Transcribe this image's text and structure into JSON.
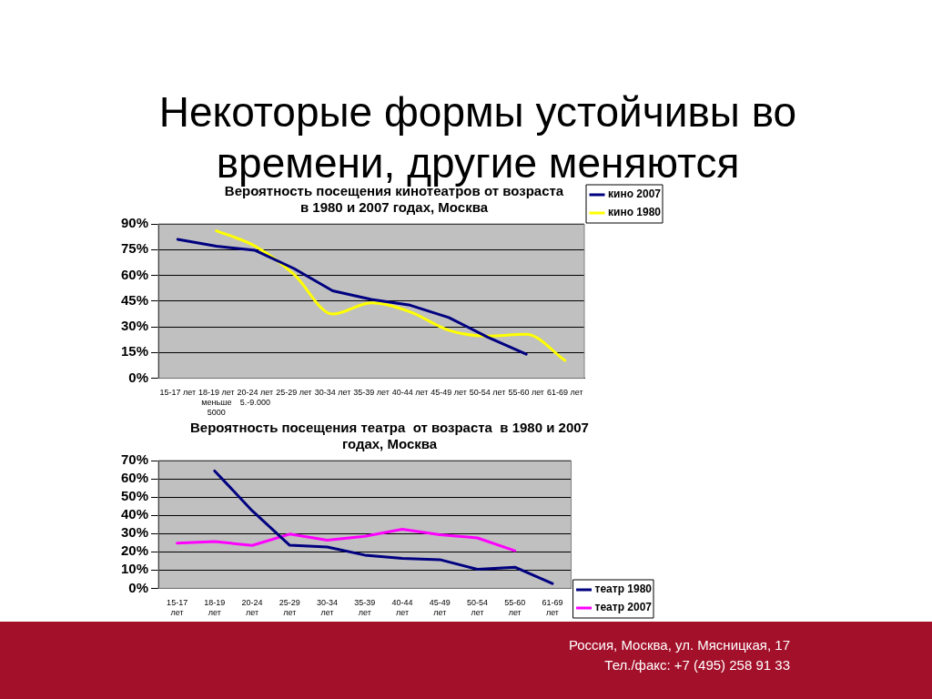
{
  "chart_data": [
    {
      "type": "line",
      "title": "Вероятность посещения кинотеатров от возраста\nв 1980 и 2007 годах, Москва",
      "annotations": [
        "Некоторые формы устойчивы во времени, другие меняются"
      ],
      "categories": [
        "15-17 лет",
        "18-19 лет\nменьше\n5000",
        "20-24 лет\n5.-9.000",
        "25-29 лет",
        "30-34 лет",
        "35-39 лет",
        "40-44 лет",
        "45-49 лет",
        "50-54 лет",
        "55-60 лет",
        "61-69 лет"
      ],
      "series": [
        {
          "name": "кино 2007",
          "color": "#000080",
          "line_style": "solid",
          "values": [
            81,
            77,
            74.6,
            64,
            51,
            46,
            42.6,
            35.4,
            24,
            14,
            null
          ]
        },
        {
          "name": "кино 1980",
          "color": "#ffff00",
          "type": "line",
          "values": [
            null,
            86,
            77,
            60.6,
            37.4,
            44,
            38.7,
            28,
            24.6,
            25.7,
            10.4
          ]
        }
      ],
      "ylim": [
        0,
        90
      ],
      "yticks": [
        {
          "value": 0,
          "label": "0%"
        },
        {
          "value": 15,
          "label": "15%"
        },
        {
          "value": 30,
          "label": "30%"
        },
        {
          "value": 45,
          "label": "45%"
        },
        {
          "value": 60,
          "label": "60%"
        },
        {
          "value": 75,
          "label": "75%"
        },
        {
          "value": 90,
          "label": "90%"
        }
      ],
      "grid": "y",
      "legend": "top right",
      "marker": "none"
    },
    {
      "type": "line",
      "title": "Вероятность посещения театра  от возраста  в 1980 и 2007\nгодах, Москва",
      "annotations": [
        "Россия, Москва, ул. Мясницкая, 17",
        "Тел./факс: +7 (495) 258 91 33"
      ],
      "categories": [
        "15-17\nлет",
        "18-19\nлет",
        "20-24\nлет",
        "25-29\nлет",
        "30-34\nлет",
        "35-39\nлет",
        "40-44\nлет",
        "45-49\nлет",
        "50-54\nлет",
        "55-60\nлет",
        "61-69\nлет"
      ],
      "series": [
        {
          "name": "театр 1980",
          "color": "#000080",
          "values": [
            null,
            64.3,
            42.5,
            23.6,
            22.6,
            18.2,
            16.4,
            15.7,
            10.4,
            11.6,
            2.6
          ]
        },
        {
          "name": "театр 2007",
          "color": "#ff00ff",
          "values": [
            24.7,
            25.6,
            23.5,
            29.7,
            26.4,
            28.5,
            32.4,
            29.4,
            27.6,
            20.6,
            null
          ]
        }
      ],
      "ylim": [
        0,
        70
      ],
      "yticks": [
        {
          "value": 0,
          "label": "0%"
        },
        {
          "value": 10,
          "label": "10%"
        },
        {
          "value": 20,
          "label": "20%"
        },
        {
          "value": 30,
          "label": "30%"
        },
        {
          "value": 40,
          "label": "40%"
        },
        {
          "value": 50,
          "label": "50%"
        },
        {
          "value": 60,
          "label": "60%"
        },
        {
          "value": 70,
          "label": "70%"
        }
      ],
      "grid": "y",
      "legend": "bottom right",
      "marker": "none"
    }
  ]
}
